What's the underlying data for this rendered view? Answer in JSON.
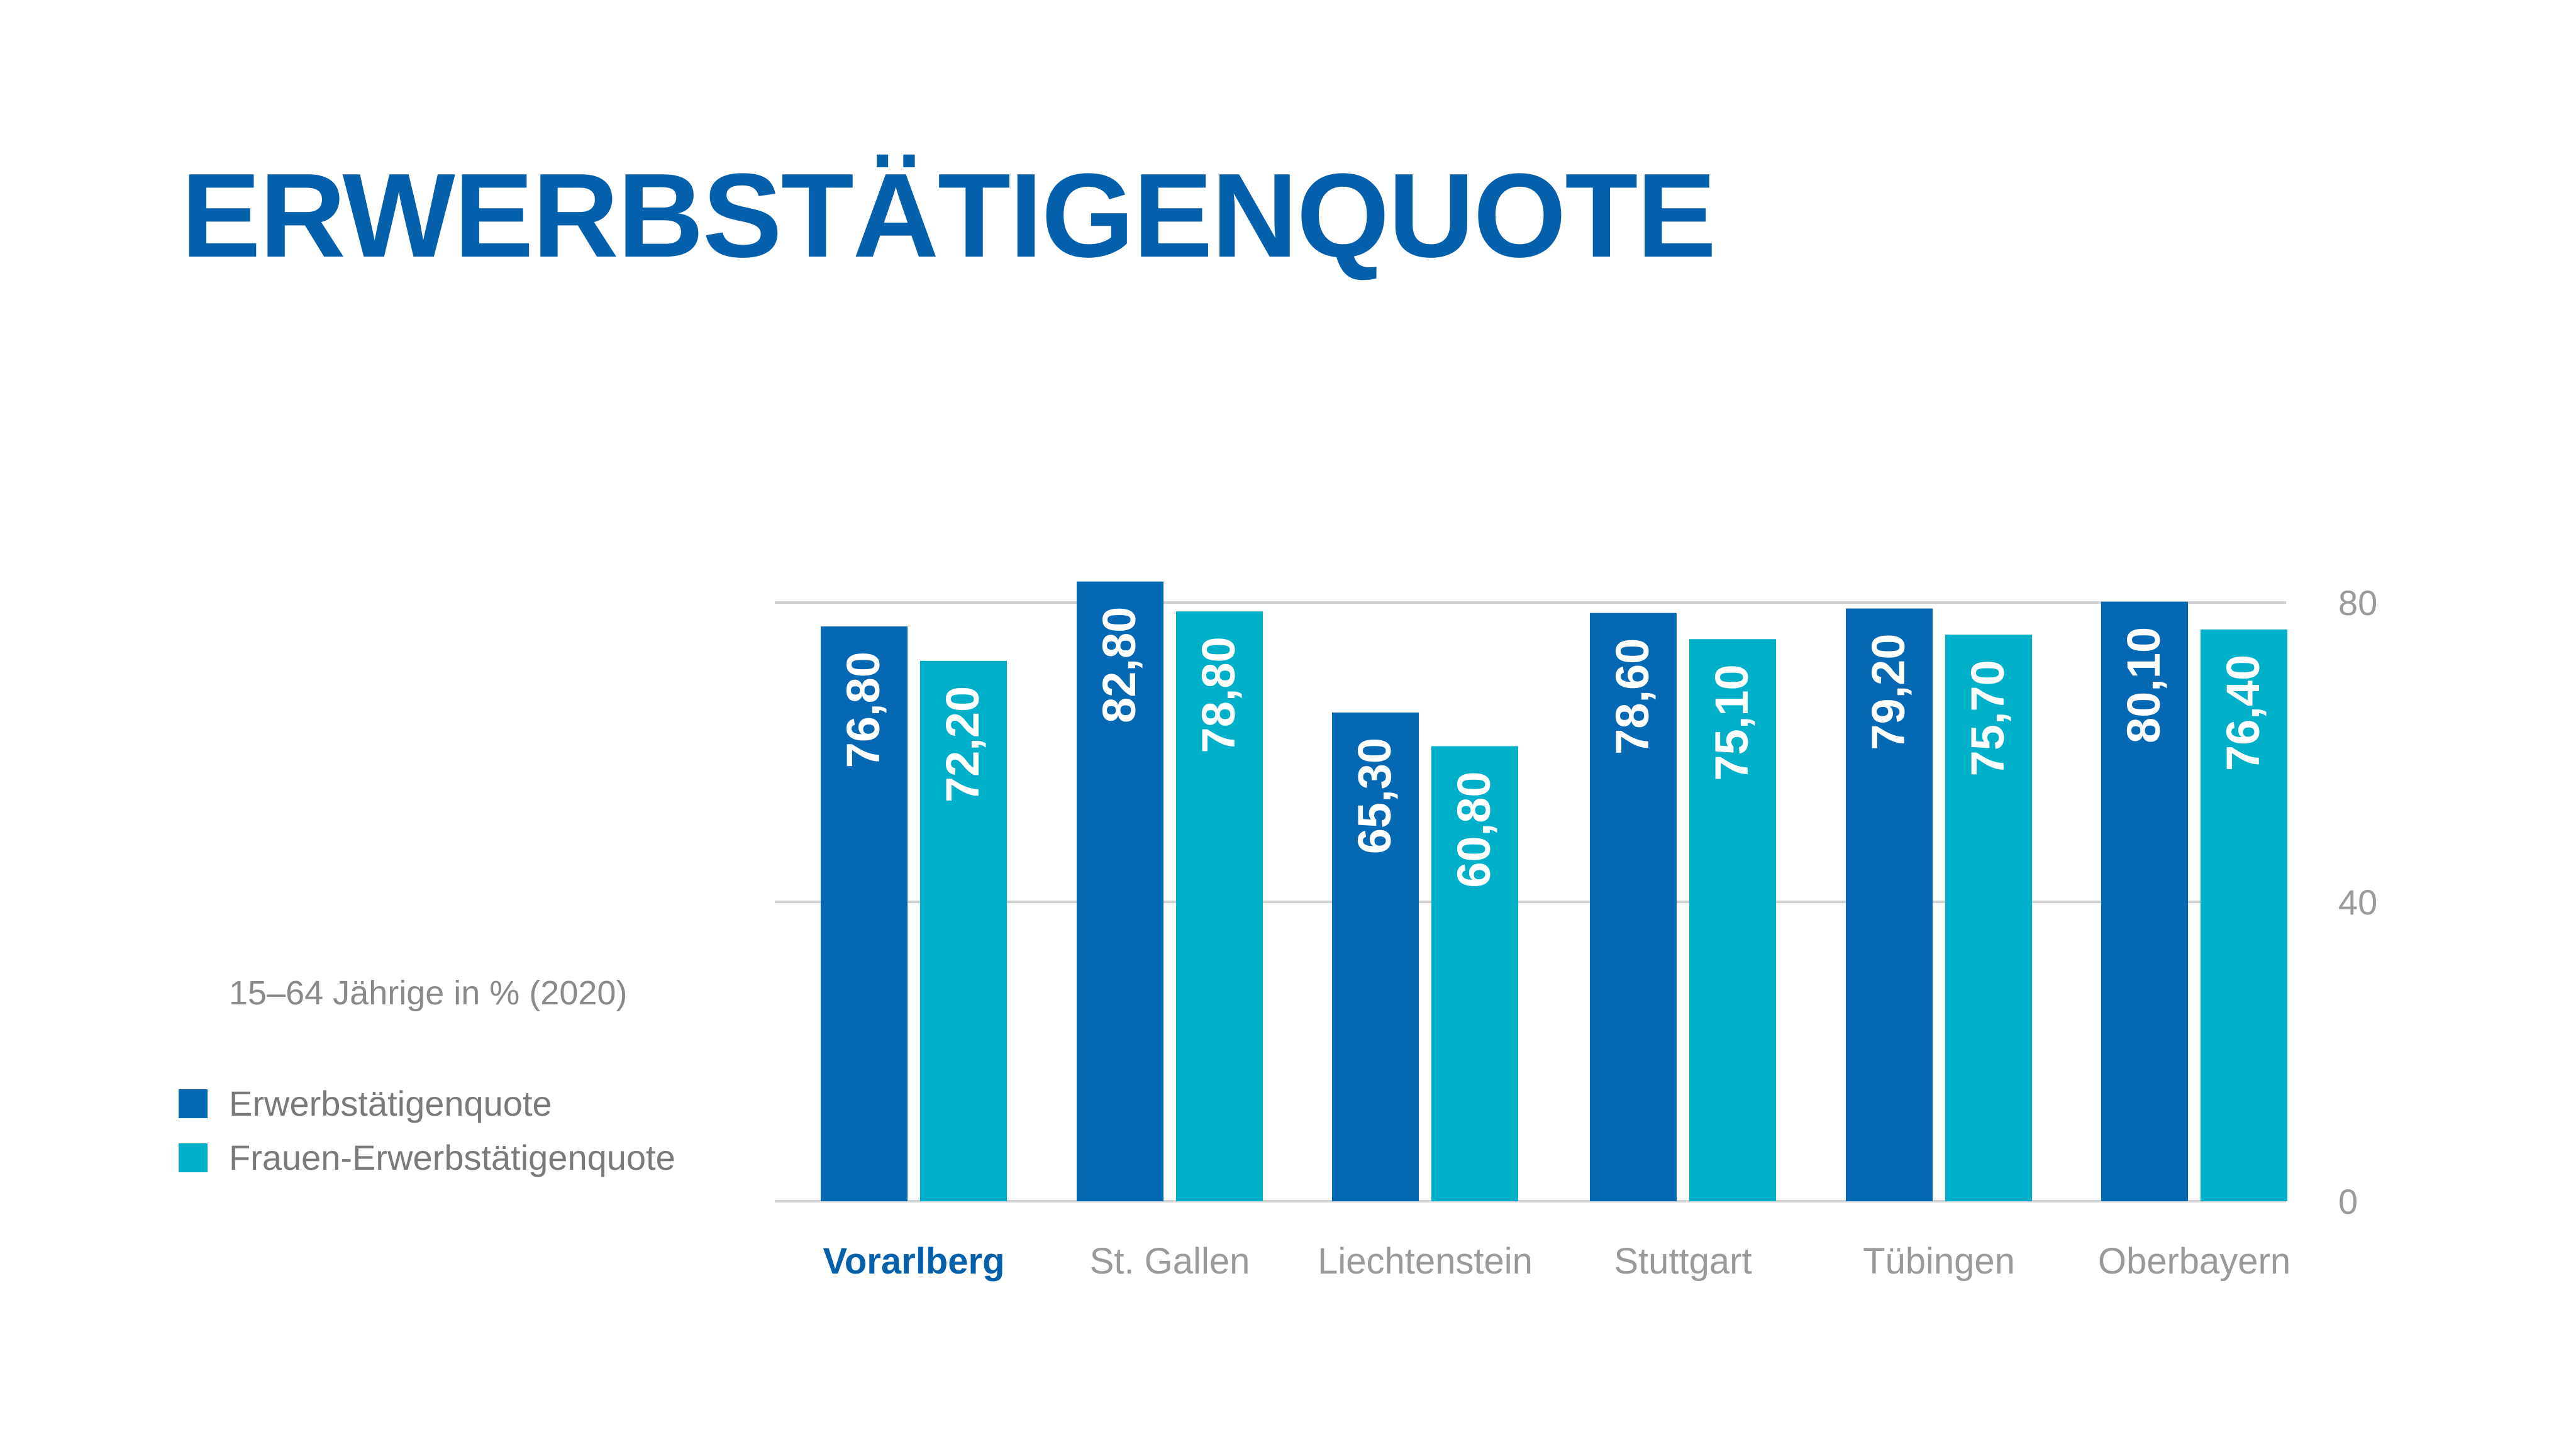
{
  "chart_data": {
    "type": "bar",
    "title": "ERWERBSTÄTIGENQUOTE",
    "subtitle": "15–64 Jährige in % (2020)",
    "categories": [
      "Vorarlberg",
      "St. Gallen",
      "Liechtenstein",
      "Stuttgart",
      "Tübingen",
      "Oberbayern"
    ],
    "highlight_category": "Vorarlberg",
    "series": [
      {
        "name": "Erwerbstätigenquote",
        "color": "#0568b3",
        "values": [
          76.8,
          82.8,
          65.3,
          78.6,
          79.2,
          80.1
        ],
        "labels": [
          "76,80",
          "82,80",
          "65,30",
          "78,60",
          "79,20",
          "80,10"
        ]
      },
      {
        "name": "Frauen-Erwerbstätigenquote",
        "color": "#00b0c9",
        "values": [
          72.2,
          78.8,
          60.8,
          75.1,
          75.7,
          76.4
        ],
        "labels": [
          "72,20",
          "78,80",
          "60,80",
          "75,10",
          "75,70",
          "76,40"
        ]
      }
    ],
    "yticks": [
      "0",
      "40",
      "80"
    ],
    "ylim": [
      0,
      80
    ],
    "yaxis_position": "right",
    "grid": true,
    "legend_position": "left",
    "colors": {
      "title": "#0560ab",
      "highlight_label": "#0560ab",
      "muted_label": "#9a9a9a",
      "gridline": "#cfcfcf"
    }
  }
}
